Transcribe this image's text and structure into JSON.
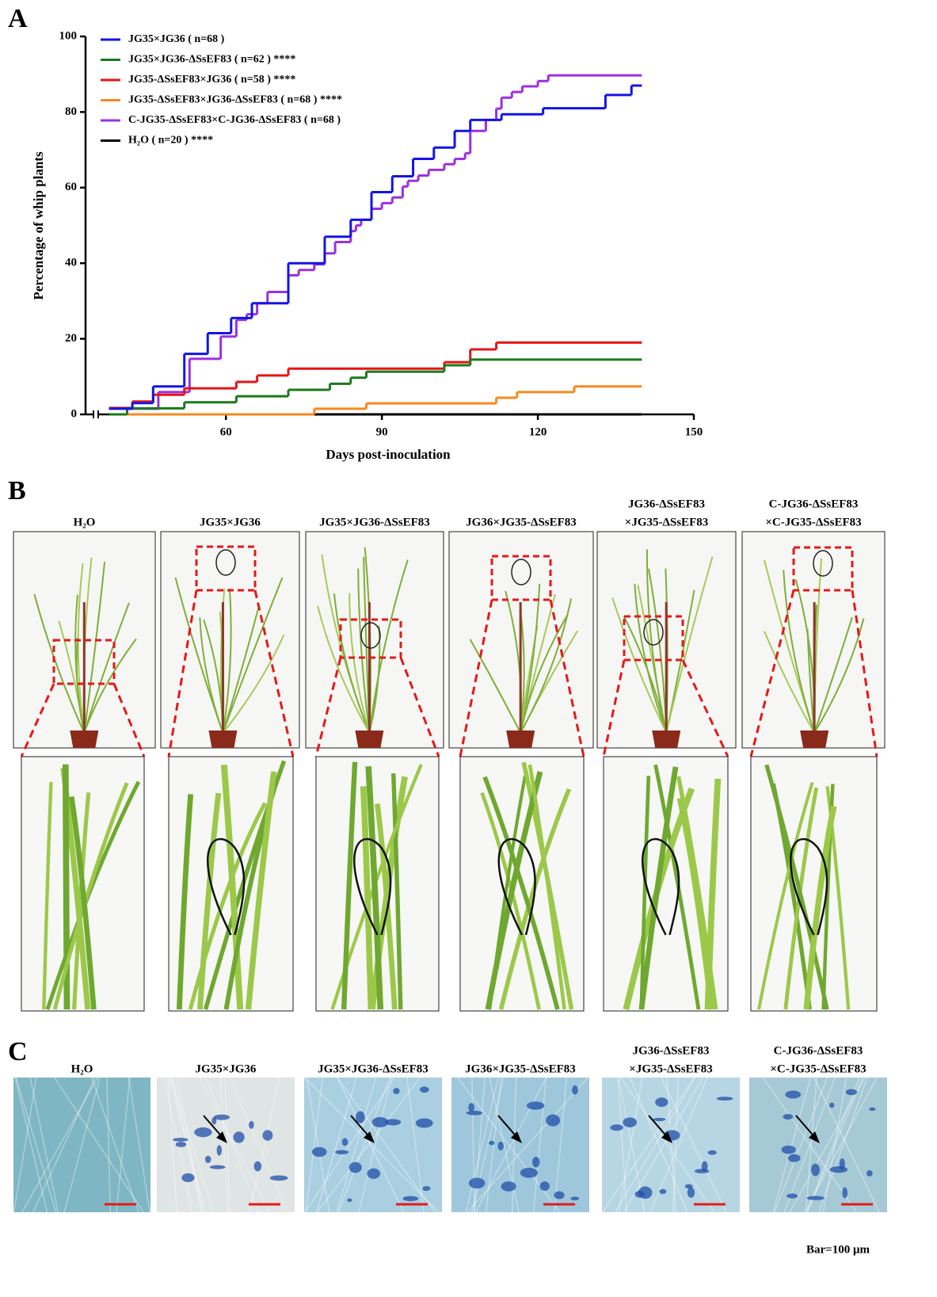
{
  "panel_labels": [
    "A",
    "B",
    "C"
  ],
  "chart_data": {
    "type": "step",
    "xlabel": "Days post-inoculation",
    "ylabel": "Percentage of whip plants",
    "xlim": [
      33,
      150
    ],
    "ylim": [
      0,
      100
    ],
    "xticks": [
      60,
      90,
      120,
      150
    ],
    "yticks": [
      0,
      20,
      40,
      60,
      80,
      100
    ],
    "series": [
      {
        "name": "JG35×JG36 ( n=68 )",
        "color": "#1414e6",
        "x": [
          37.5,
          42,
          46,
          52,
          56.5,
          61,
          65,
          72,
          79,
          84,
          88,
          92,
          96,
          100,
          104,
          107,
          113,
          121,
          133,
          138,
          140
        ],
        "values": [
          1.5,
          3,
          7.4,
          16,
          21.5,
          25.5,
          29.4,
          40,
          47,
          51.5,
          58.8,
          63,
          67.6,
          70.6,
          75,
          77.9,
          79.4,
          81,
          84.5,
          87,
          87
        ]
      },
      {
        "name": "JG35×JG36-ΔSsEF83 ( n=62 ) ****",
        "color": "#1a7a1a",
        "x": [
          37.5,
          41,
          52,
          62,
          72,
          80,
          84,
          87,
          102,
          107,
          140
        ],
        "values": [
          0,
          1.6,
          3.2,
          4.8,
          6.5,
          8.1,
          9.7,
          11.3,
          13,
          14.5,
          14.5
        ]
      },
      {
        "name": "JG35-ΔSsEF83×JG36 ( n=58 ) ****",
        "color": "#e61414",
        "x": [
          37.5,
          42,
          46,
          52,
          62,
          66,
          72,
          102,
          107,
          112,
          140
        ],
        "values": [
          1.7,
          3.4,
          5.2,
          6.9,
          8.6,
          10.3,
          12.1,
          13.8,
          17.2,
          19,
          19
        ]
      },
      {
        "name": "JG35-ΔSsEF83×JG36-ΔSsEF83 ( n=68 ) ****",
        "color": "#f58a1f",
        "x": [
          37.5,
          77,
          87,
          112,
          116,
          127,
          140
        ],
        "values": [
          0,
          1.5,
          2.9,
          4.4,
          5.9,
          7.4,
          7.4
        ]
      },
      {
        "name": "C-JG35-ΔSsEF83×C-JG36-ΔSsEF83 ( n=68 )",
        "color": "#9b30e0",
        "x": [
          41,
          47,
          53,
          59,
          62,
          64,
          66,
          68,
          72,
          74,
          77,
          79,
          81,
          84,
          85,
          86,
          88,
          90,
          92,
          94,
          95,
          97,
          99,
          102,
          104,
          106,
          107,
          110,
          112,
          113,
          115,
          117,
          120,
          122,
          140
        ],
        "values": [
          1.5,
          5.9,
          14.7,
          20.6,
          25,
          26.5,
          29.4,
          32.4,
          36.8,
          38.2,
          39.7,
          42.6,
          45.6,
          48.5,
          50,
          51.5,
          54.4,
          55.9,
          57.4,
          60.3,
          61.8,
          63.2,
          64.7,
          66.2,
          67.6,
          69.1,
          75,
          77.9,
          80.9,
          83.8,
          85.3,
          86.8,
          88.2,
          89.7,
          89.7
        ]
      },
      {
        "name": "H₂O ( n=20 ) ****",
        "color": "#000000",
        "x": [
          37.5,
          140
        ],
        "values": [
          0,
          0
        ]
      }
    ]
  },
  "panel_b": {
    "columns": [
      [
        "H₂O"
      ],
      [
        "JG35×JG36"
      ],
      [
        "JG35×JG36-ΔSsEF83"
      ],
      [
        "JG36×JG35-ΔSsEF83"
      ],
      [
        "JG36-ΔSsEF83",
        "×JG35-ΔSsEF83"
      ],
      [
        "C-JG36-ΔSsEF83",
        "×C-JG35-ΔSsEF83"
      ]
    ]
  },
  "panel_c": {
    "columns": [
      [
        "H₂O"
      ],
      [
        "JG35×JG36"
      ],
      [
        "JG35×JG36-ΔSsEF83"
      ],
      [
        "JG36×JG35-ΔSsEF83"
      ],
      [
        "JG36-ΔSsEF83",
        "×JG35-ΔSsEF83"
      ],
      [
        "C-JG36-ΔSsEF83",
        "×C-JG35-ΔSsEF83"
      ]
    ],
    "scale_bar": "Bar=100 μm"
  }
}
